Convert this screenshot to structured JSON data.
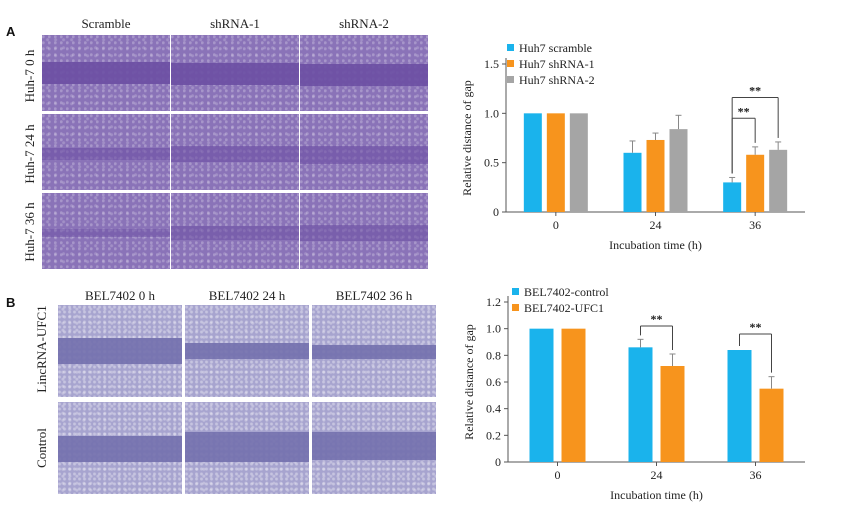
{
  "panelA": {
    "letter": "A",
    "columns": [
      "Scramble",
      "shRNA-1",
      "shRNA-2"
    ],
    "rows": [
      "Huh-7 0 h",
      "Huh-7 24 h",
      "Huh-7 36 h"
    ]
  },
  "panelB": {
    "letter": "B",
    "columns": [
      "BEL7402 0 h",
      "BEL7402 24 h",
      "BEL7402 36 h"
    ],
    "rows": [
      "LincRNA-UFC1",
      "Control"
    ]
  },
  "colors": {
    "blue": "#1ab3ec",
    "orange": "#f7941d",
    "gray": "#a5a5a5"
  },
  "chart_data": [
    {
      "type": "bar",
      "xlabel": "Incubation time (h)",
      "ylabel": "Relative distance of gap",
      "categories": [
        "0",
        "24",
        "36"
      ],
      "ylim": [
        0,
        1.5
      ],
      "yticks": [
        "0",
        "0.5",
        "1.0",
        "1.5"
      ],
      "legend_position": "top-left",
      "series": [
        {
          "name": "Huh7 scramble",
          "values": [
            1.0,
            0.6,
            0.3
          ],
          "errors": [
            0.0,
            0.12,
            0.05
          ]
        },
        {
          "name": "Huh7 shRNA-1",
          "values": [
            1.0,
            0.73,
            0.58
          ],
          "errors": [
            0.0,
            0.07,
            0.08
          ]
        },
        {
          "name": "Huh7 shRNA-2",
          "values": [
            1.0,
            0.84,
            0.63
          ],
          "errors": [
            0.0,
            0.14,
            0.08
          ]
        }
      ],
      "annotations": [
        "**",
        "**"
      ]
    },
    {
      "type": "bar",
      "xlabel": "Incubation time (h)",
      "ylabel": "Relative distance of gap",
      "categories": [
        "0",
        "24",
        "36"
      ],
      "ylim": [
        0,
        1.2
      ],
      "yticks": [
        "0",
        "0.2",
        "0.4",
        "0.6",
        "0.8",
        "1.0",
        "1.2"
      ],
      "legend_position": "top-left",
      "series": [
        {
          "name": "BEL7402-control",
          "values": [
            1.0,
            0.86,
            0.84
          ],
          "errors": [
            0.0,
            0.06,
            0.0
          ]
        },
        {
          "name": "BEL7402-UFC1",
          "values": [
            1.0,
            0.72,
            0.55
          ],
          "errors": [
            0.0,
            0.09,
            0.09
          ]
        }
      ],
      "annotations": [
        "**",
        "**"
      ]
    }
  ]
}
